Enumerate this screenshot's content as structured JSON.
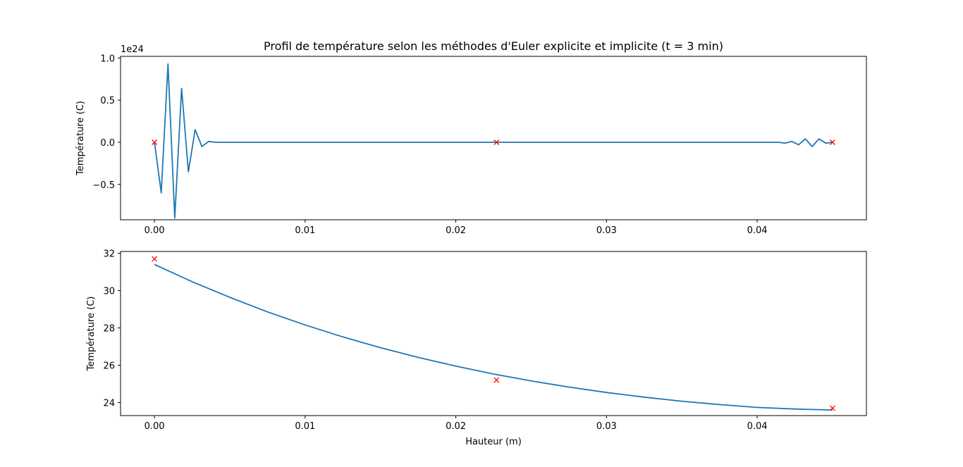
{
  "chart_data": [
    {
      "type": "line",
      "title": "Profil de température selon les méthodes d'Euler explicite et implicite (t = 3 min)",
      "xlabel": "",
      "ylabel": "Température (C)",
      "offset_label": "1e24",
      "xlim": [
        -0.00225,
        0.04725
      ],
      "ylim": [
        -0.92,
        1.02
      ],
      "x_ticks": [
        0.0,
        0.01,
        0.02,
        0.03,
        0.04
      ],
      "x_tick_labels": [
        "0.00",
        "0.01",
        "0.02",
        "0.03",
        "0.04"
      ],
      "y_ticks": [
        -0.5,
        0.0,
        0.5,
        1.0
      ],
      "y_tick_labels": [
        "−0.5",
        "0.0",
        "0.5",
        "1.0"
      ],
      "line_color": "#1f77b4",
      "marker_color": "#ff0000",
      "series": [
        {
          "x": [
            0.0,
            0.00045,
            0.0009,
            0.00135,
            0.0018,
            0.00225,
            0.0027,
            0.00315,
            0.0036,
            0.00405,
            0.0045,
            0.005,
            0.01,
            0.02,
            0.03,
            0.04,
            0.0405,
            0.041,
            0.04125,
            0.0414,
            0.04185,
            0.0423,
            0.04275,
            0.0432,
            0.04365,
            0.0441,
            0.04455,
            0.045
          ],
          "y": [
            0.0,
            -0.6,
            0.93,
            -0.9,
            0.64,
            -0.35,
            0.15,
            -0.05,
            0.01,
            0.0,
            0.0,
            0.0,
            0.0,
            0.0,
            0.0,
            0.0,
            0.0,
            0.0,
            0.0,
            0.0,
            -0.01,
            0.01,
            -0.03,
            0.04,
            -0.05,
            0.04,
            -0.01,
            0.0
          ]
        },
        {
          "marker": "x",
          "x": [
            0.0,
            0.0227,
            0.045
          ],
          "y": [
            0.0,
            0.0,
            0.0
          ]
        }
      ]
    },
    {
      "type": "line",
      "title": "",
      "xlabel": "Hauteur (m)",
      "ylabel": "Température (C)",
      "xlim": [
        -0.00225,
        0.04725
      ],
      "ylim": [
        23.3,
        32.1
      ],
      "x_ticks": [
        0.0,
        0.01,
        0.02,
        0.03,
        0.04
      ],
      "x_tick_labels": [
        "0.00",
        "0.01",
        "0.02",
        "0.03",
        "0.04"
      ],
      "y_ticks": [
        24,
        26,
        28,
        30,
        32
      ],
      "y_tick_labels": [
        "24",
        "26",
        "28",
        "30",
        "32"
      ],
      "line_color": "#1f77b4",
      "marker_color": "#ff0000",
      "series": [
        {
          "x": [
            0.0,
            0.0025,
            0.005,
            0.0075,
            0.01,
            0.0125,
            0.015,
            0.0175,
            0.02,
            0.0225,
            0.025,
            0.0275,
            0.03,
            0.0325,
            0.035,
            0.0375,
            0.04,
            0.0425,
            0.045
          ],
          "y": [
            31.4,
            30.48,
            29.64,
            28.86,
            28.16,
            27.52,
            26.94,
            26.42,
            25.95,
            25.53,
            25.16,
            24.83,
            24.54,
            24.29,
            24.07,
            23.89,
            23.74,
            23.65,
            23.6
          ]
        },
        {
          "marker": "x",
          "x": [
            0.0,
            0.0227,
            0.045
          ],
          "y": [
            31.7,
            25.2,
            23.7
          ]
        }
      ]
    }
  ]
}
